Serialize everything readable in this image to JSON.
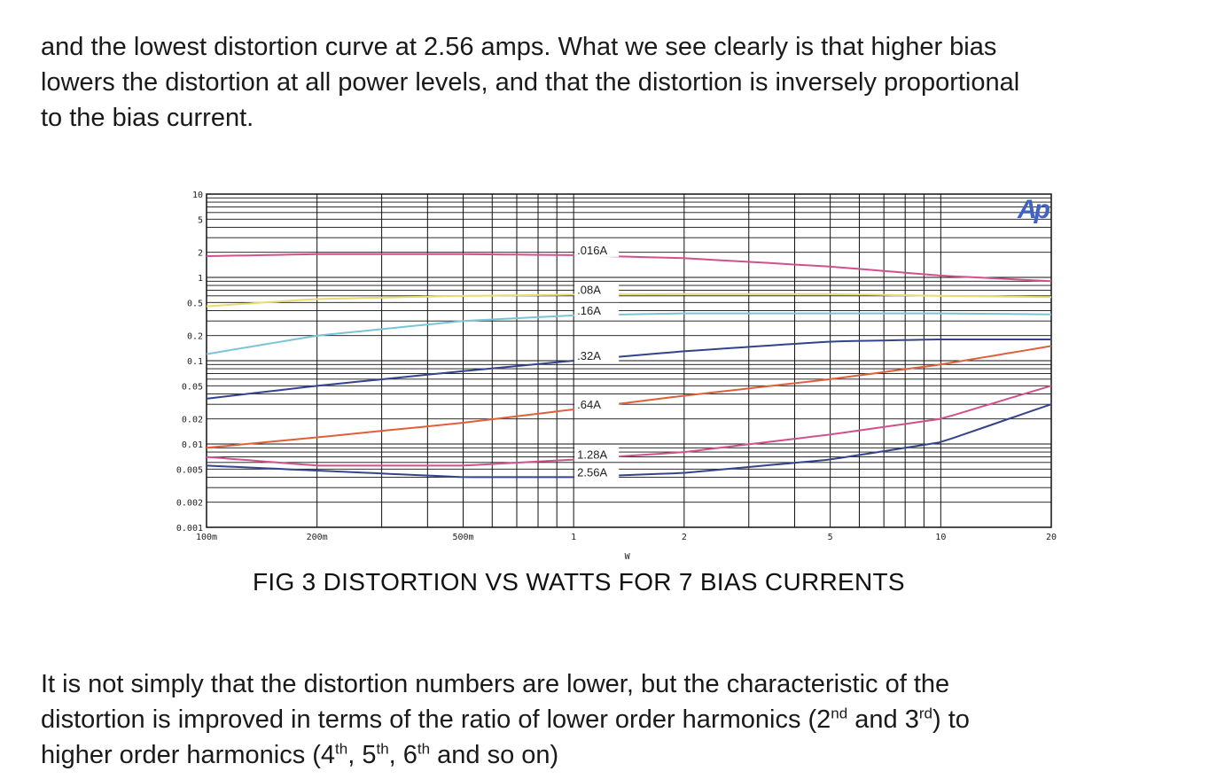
{
  "text_top": {
    "line1": "and the lowest distortion curve at 2.56 amps.  What we see clearly is that higher bias",
    "line2": "lowers the distortion at all power levels, and that the distortion is inversely proportional",
    "line3": "to the bias current."
  },
  "text_bottom": {
    "l1": "It is not simply that the distortion numbers are lower, but the characteristic of the",
    "l2a": "distortion is improved in terms of the ratio of lower order harmonics (2",
    "l2b": "nd",
    "l2c": " and 3",
    "l2d": "rd",
    "l2e": ") to",
    "l3a": "higher order harmonics (4",
    "l3b": "th",
    "l3c": ", 5",
    "l3d": "th",
    "l3e": ", 6",
    "l3f": "th",
    "l3g": " and so on)"
  },
  "caption": "FIG 3  DISTORTION VS WATTS FOR 7 BIAS CURRENTS",
  "logo": "Ap",
  "chart_data": {
    "type": "line",
    "title": "",
    "xlabel": "W",
    "ylabel": "",
    "x_scale": "log",
    "y_scale": "log",
    "xlim": [
      0.1,
      20
    ],
    "ylim": [
      0.001,
      10
    ],
    "grid": true,
    "legend": "inline labels",
    "x_ticks": [
      {
        "value": 0.1,
        "label": "100m"
      },
      {
        "value": 0.2,
        "label": "200m"
      },
      {
        "value": 0.5,
        "label": "500m"
      },
      {
        "value": 1,
        "label": "1"
      },
      {
        "value": 2,
        "label": "2"
      },
      {
        "value": 5,
        "label": "5"
      },
      {
        "value": 10,
        "label": "10"
      },
      {
        "value": 20,
        "label": "20"
      }
    ],
    "y_ticks": [
      {
        "value": 10,
        "label": "10"
      },
      {
        "value": 5,
        "label": "5"
      },
      {
        "value": 2,
        "label": "2"
      },
      {
        "value": 1,
        "label": "1"
      },
      {
        "value": 0.5,
        "label": "0.5"
      },
      {
        "value": 0.2,
        "label": "0.2"
      },
      {
        "value": 0.1,
        "label": "0.1"
      },
      {
        "value": 0.05,
        "label": "0.05"
      },
      {
        "value": 0.02,
        "label": "0.02"
      },
      {
        "value": 0.01,
        "label": "0.01"
      },
      {
        "value": 0.005,
        "label": "0.005"
      },
      {
        "value": 0.002,
        "label": "0.002"
      },
      {
        "value": 0.001,
        "label": "0.001"
      }
    ],
    "series": [
      {
        "name": ".016A",
        "color": "#d2508c",
        "x": [
          0.1,
          0.2,
          0.5,
          1,
          2,
          5,
          10,
          20
        ],
        "y": [
          1.8,
          1.9,
          1.9,
          1.85,
          1.7,
          1.35,
          1.05,
          0.9
        ],
        "label_at": 1
      },
      {
        "name": ".08A",
        "color": "#e8dc6e",
        "x": [
          0.1,
          0.2,
          0.5,
          1,
          2,
          5,
          10,
          20
        ],
        "y": [
          0.45,
          0.55,
          0.6,
          0.62,
          0.63,
          0.63,
          0.6,
          0.58
        ],
        "label_at": 1
      },
      {
        "name": ".16A",
        "color": "#7ac4d8",
        "x": [
          0.1,
          0.2,
          0.5,
          1,
          2,
          5,
          10,
          20
        ],
        "y": [
          0.12,
          0.2,
          0.3,
          0.35,
          0.37,
          0.37,
          0.37,
          0.36
        ],
        "label_at": 1
      },
      {
        "name": ".32A",
        "color": "#34448c",
        "x": [
          0.1,
          0.2,
          0.5,
          1,
          2,
          5,
          10,
          20
        ],
        "y": [
          0.035,
          0.05,
          0.075,
          0.1,
          0.13,
          0.17,
          0.18,
          0.18
        ],
        "label_at": 1
      },
      {
        "name": ".64A",
        "color": "#e0603c",
        "x": [
          0.1,
          0.2,
          0.5,
          1,
          2,
          5,
          10,
          20
        ],
        "y": [
          0.009,
          0.012,
          0.018,
          0.026,
          0.038,
          0.06,
          0.09,
          0.15
        ],
        "label_at": 1
      },
      {
        "name": "1.28A",
        "color": "#d2508c",
        "x": [
          0.1,
          0.2,
          0.5,
          1,
          2,
          5,
          10,
          20
        ],
        "y": [
          0.007,
          0.0055,
          0.0055,
          0.0065,
          0.008,
          0.013,
          0.02,
          0.05
        ],
        "label_at": 1
      },
      {
        "name": "2.56A",
        "color": "#34448c",
        "x": [
          0.1,
          0.2,
          0.5,
          1,
          2,
          5,
          10,
          20
        ],
        "y": [
          0.0055,
          0.0048,
          0.004,
          0.004,
          0.0045,
          0.0065,
          0.0105,
          0.03
        ],
        "label_at": 1
      }
    ]
  }
}
